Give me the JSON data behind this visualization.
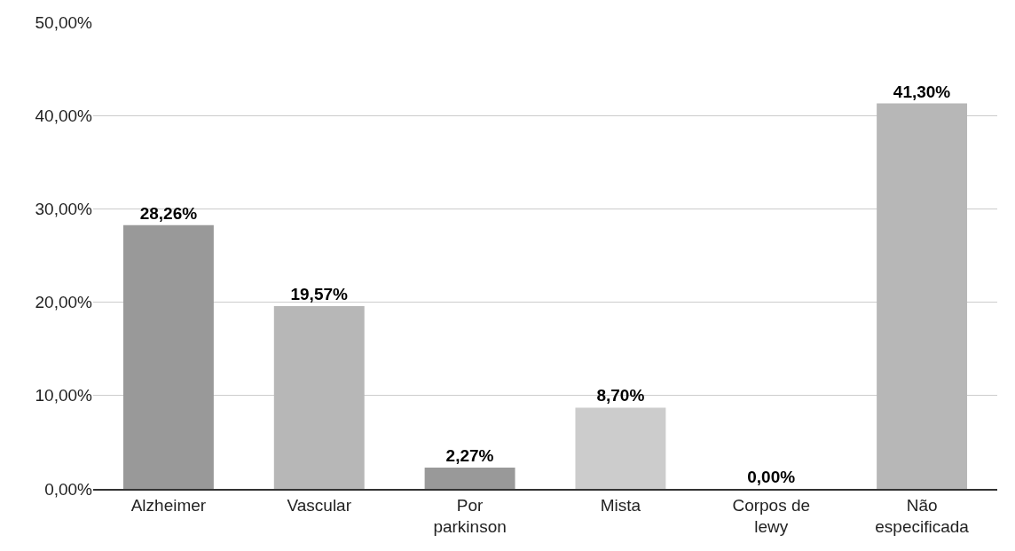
{
  "chart_data": {
    "type": "bar",
    "categories": [
      "Alzheimer",
      "Vascular",
      "Por parkinson",
      "Mista",
      "Corpos de lewy",
      "Não especificada"
    ],
    "values": [
      28.26,
      19.57,
      2.27,
      8.7,
      0,
      41.3
    ],
    "colors": [
      "#999999",
      "#b7b7b7",
      "#999999",
      "#cccccc",
      "#b7b7b7",
      "#b7b7b7"
    ],
    "value_labels": [
      "28,26%",
      "19,57%",
      "2,27%",
      "8,70%",
      "0,00%",
      "41,30%"
    ],
    "ylim": [
      0,
      50
    ],
    "yticks": [
      {
        "value": 0,
        "label": "0,00%"
      },
      {
        "value": 10,
        "label": "10,00%"
      },
      {
        "value": 20,
        "label": "20,00%"
      },
      {
        "value": 30,
        "label": "30,00%"
      },
      {
        "value": 40,
        "label": "40,00%"
      },
      {
        "value": 50,
        "label": "50,00%"
      }
    ],
    "grid": "y"
  }
}
